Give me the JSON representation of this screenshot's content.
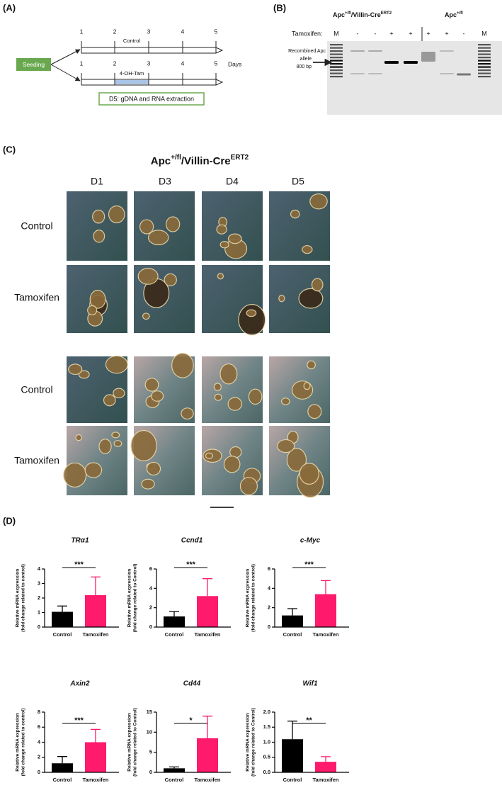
{
  "panel_a": {
    "label": "(A)",
    "seeding": "Seeding",
    "days": [
      "1",
      "2",
      "3",
      "4",
      "5"
    ],
    "control": "Control",
    "treatment": "4-OH-Tam",
    "days_label": "Days",
    "extraction": "D5: gDNA and RNA extraction"
  },
  "panel_b": {
    "label": "(B)",
    "genotype_1": {
      "gene": "Apc",
      "allele": "+/fl",
      "cre": "/Villin-Cre",
      "cre_allele": "ERT2"
    },
    "genotype_2": {
      "gene": "Apc",
      "allele": "+/fl"
    },
    "tamoxifen_label": "Tamoxifen:",
    "lanes": [
      "M",
      "-",
      "-",
      "+",
      "+",
      "+",
      "+",
      "-",
      "M"
    ],
    "band_annotation": [
      "Recombined Apc",
      "allele",
      "800 bp"
    ]
  },
  "panel_c": {
    "label": "(C)",
    "title": {
      "gene": "Apc",
      "allele": "+/fl",
      "cre": "/Villin-Cre",
      "cre_allele": "ERT2"
    },
    "columns": [
      "D1",
      "D3",
      "D4",
      "D5"
    ],
    "rows": [
      "Control",
      "Tamoxifen",
      "Control",
      "Tamoxifen"
    ]
  },
  "panel_d": {
    "label": "(D)"
  },
  "chart_data": [
    {
      "type": "bar",
      "title": "TRα1",
      "ylabel": [
        "Relative mRNA expression",
        "(fold change related to control)"
      ],
      "categories": [
        "Control",
        "Tamoxifen"
      ],
      "values": [
        1.05,
        2.2
      ],
      "errors": [
        0.4,
        1.25
      ],
      "colors": [
        "#000000",
        "#ff1a6c"
      ],
      "ylim": [
        0,
        4
      ],
      "yticks": [
        0,
        1,
        2,
        3,
        4
      ],
      "significance": "***"
    },
    {
      "type": "bar",
      "title": "Ccnd1",
      "ylabel": [
        "Relative mRNA expression",
        "(fold change related to Control)"
      ],
      "categories": [
        "Control",
        "Tamoxifen"
      ],
      "values": [
        1.1,
        3.2
      ],
      "errors": [
        0.5,
        1.8
      ],
      "colors": [
        "#000000",
        "#ff1a6c"
      ],
      "ylim": [
        0,
        6
      ],
      "yticks": [
        0,
        2,
        4,
        6
      ],
      "significance": "***"
    },
    {
      "type": "bar",
      "title": "c-Myc",
      "ylabel": [
        "Relative mRNA expression",
        "(fold change related to control)"
      ],
      "categories": [
        "Control",
        "Tamoxifen"
      ],
      "values": [
        1.2,
        3.4
      ],
      "errors": [
        0.7,
        1.4
      ],
      "colors": [
        "#000000",
        "#ff1a6c"
      ],
      "ylim": [
        0,
        6
      ],
      "yticks": [
        0,
        2,
        4,
        6
      ],
      "significance": "***"
    },
    {
      "type": "bar",
      "title": "Axin2",
      "ylabel": [
        "Relative mRNA expression",
        "(fold change related to control)"
      ],
      "categories": [
        "Control",
        "Tamoxifen"
      ],
      "values": [
        1.2,
        4.0
      ],
      "errors": [
        0.9,
        1.7
      ],
      "colors": [
        "#000000",
        "#ff1a6c"
      ],
      "ylim": [
        0,
        8
      ],
      "yticks": [
        0,
        2,
        4,
        6,
        8
      ],
      "significance": "***"
    },
    {
      "type": "bar",
      "title": "Cd44",
      "ylabel": [
        "Relative mRNA expression",
        "(fold change related to Control)"
      ],
      "categories": [
        "Control",
        "Tamoxifen"
      ],
      "values": [
        1.0,
        8.5
      ],
      "errors": [
        0.35,
        5.5
      ],
      "colors": [
        "#000000",
        "#ff1a6c"
      ],
      "ylim": [
        0,
        15
      ],
      "yticks": [
        0,
        5,
        10,
        15
      ],
      "significance": "*"
    },
    {
      "type": "bar",
      "title": "Wif1",
      "ylabel": [
        "Relative mRNA expression",
        "(fold change related to Control)"
      ],
      "categories": [
        "Control",
        "Tamoxifen"
      ],
      "values": [
        1.1,
        0.35
      ],
      "errors": [
        0.6,
        0.17
      ],
      "colors": [
        "#000000",
        "#ff1a6c"
      ],
      "ylim": [
        0,
        2
      ],
      "yticks": [
        {
          "value": 0,
          "label": "0.0"
        },
        {
          "value": 0.5,
          "label": "0.5"
        },
        {
          "value": 1,
          "label": "1.0"
        },
        {
          "value": 1.5,
          "label": "1.5"
        },
        {
          "value": 2,
          "label": "2.0"
        }
      ],
      "significance": "**"
    }
  ]
}
